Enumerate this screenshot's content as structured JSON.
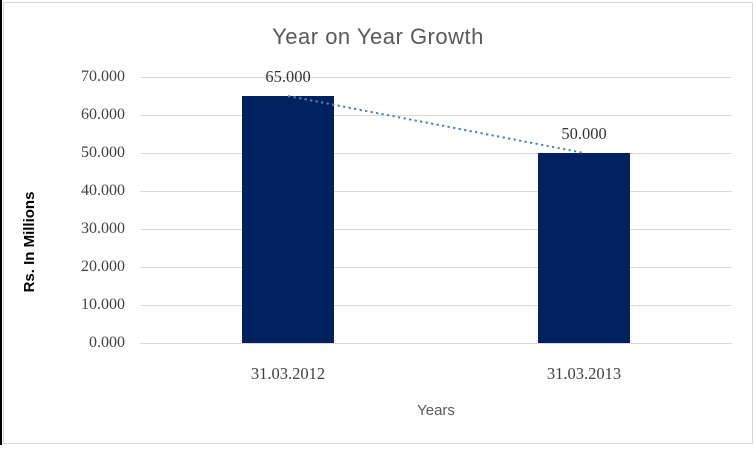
{
  "chart_data": {
    "type": "bar",
    "title": "Year on Year Growth",
    "xlabel": "Years",
    "ylabel": "Rs. In Millions",
    "categories": [
      "31.03.2012",
      "31.03.2013"
    ],
    "values": [
      65,
      50
    ],
    "data_labels": [
      "65.000",
      "50.000"
    ],
    "ytick_labels": [
      "70.000",
      "60.000",
      "50.000",
      "40.000",
      "30.000",
      "20.000",
      "10.000",
      "0.000"
    ],
    "ytick_values": [
      70,
      60,
      50,
      40,
      30,
      20,
      10,
      0
    ],
    "ylim": [
      0,
      70
    ],
    "grid": true,
    "legend": "none",
    "trendline": {
      "type": "linear",
      "style": "dotted",
      "points": [
        65,
        50
      ]
    }
  },
  "colors": {
    "bar": "#002060",
    "trendline": "#4f81bd",
    "gridline": "#d9d9d9",
    "border": "#d7d7d7",
    "title_text": "#595959",
    "axis_title_text": "#595959",
    "y_title_text": "#000000",
    "tick_text": "#404040",
    "data_label_text": "#333333"
  }
}
